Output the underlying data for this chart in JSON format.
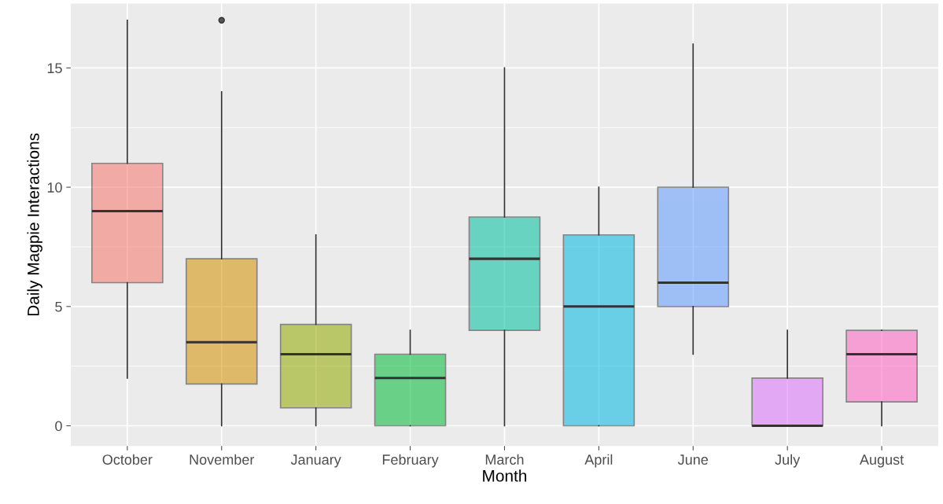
{
  "chart_data": {
    "type": "box",
    "xlabel": "Month",
    "ylabel": "Daily Magpie Interactions",
    "categories": [
      "October",
      "November",
      "January",
      "February",
      "March",
      "April",
      "June",
      "July",
      "August"
    ],
    "colors": [
      "#f8766d",
      "#d39200",
      "#93aa00",
      "#00ba38",
      "#00c19f",
      "#00b9e3",
      "#619cff",
      "#db72fb",
      "#ff61c3"
    ],
    "boxes": [
      {
        "low": 2,
        "q1": 6,
        "median": 9,
        "q3": 11,
        "high": 17
      },
      {
        "low": 0,
        "q1": 1.75,
        "median": 3.5,
        "q3": 7,
        "high": 14,
        "outliers": [
          17
        ]
      },
      {
        "low": 0,
        "q1": 0.75,
        "median": 3,
        "q3": 4.25,
        "high": 8
      },
      {
        "low": 0,
        "q1": 0,
        "median": 2,
        "q3": 3,
        "high": 4
      },
      {
        "low": 0,
        "q1": 4,
        "median": 7,
        "q3": 8.75,
        "high": 15
      },
      {
        "low": 0,
        "q1": 0,
        "median": 5,
        "q3": 8,
        "high": 10
      },
      {
        "low": 3,
        "q1": 5,
        "median": 6,
        "q3": 10,
        "high": 16
      },
      {
        "low": 0,
        "q1": 0,
        "median": 0,
        "q3": 2,
        "high": 4
      },
      {
        "low": 0,
        "q1": 1,
        "median": 3,
        "q3": 4,
        "high": 4
      }
    ],
    "ylim": [
      -0.85,
      17.7
    ],
    "yticks": [
      0,
      5,
      10,
      15
    ],
    "grid": true,
    "legend": false
  }
}
